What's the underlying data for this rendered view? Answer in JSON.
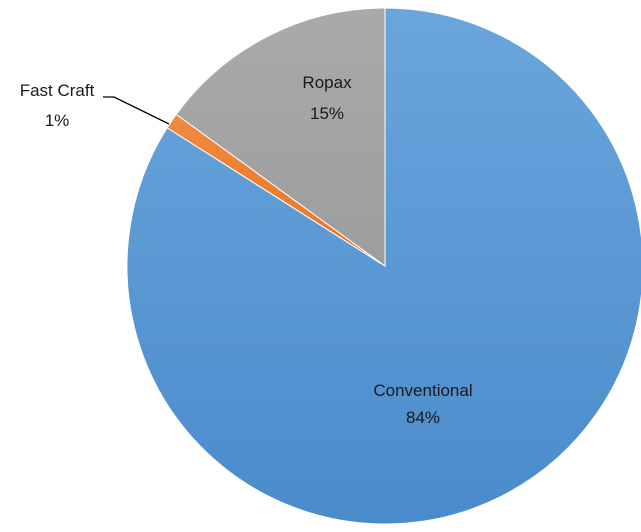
{
  "chart_data": {
    "type": "pie",
    "title": "",
    "slices": [
      {
        "name": "Conventional",
        "value": 84,
        "label": "84%",
        "color": "#5b9bd5"
      },
      {
        "name": "Fast Craft",
        "value": 1,
        "label": "1%",
        "color": "#ed7d31"
      },
      {
        "name": "Ropax",
        "value": 15,
        "label": "15%",
        "color": "#a5a5a5"
      }
    ],
    "start_angle_deg": 0,
    "direction": "clockwise",
    "legend": "none"
  }
}
